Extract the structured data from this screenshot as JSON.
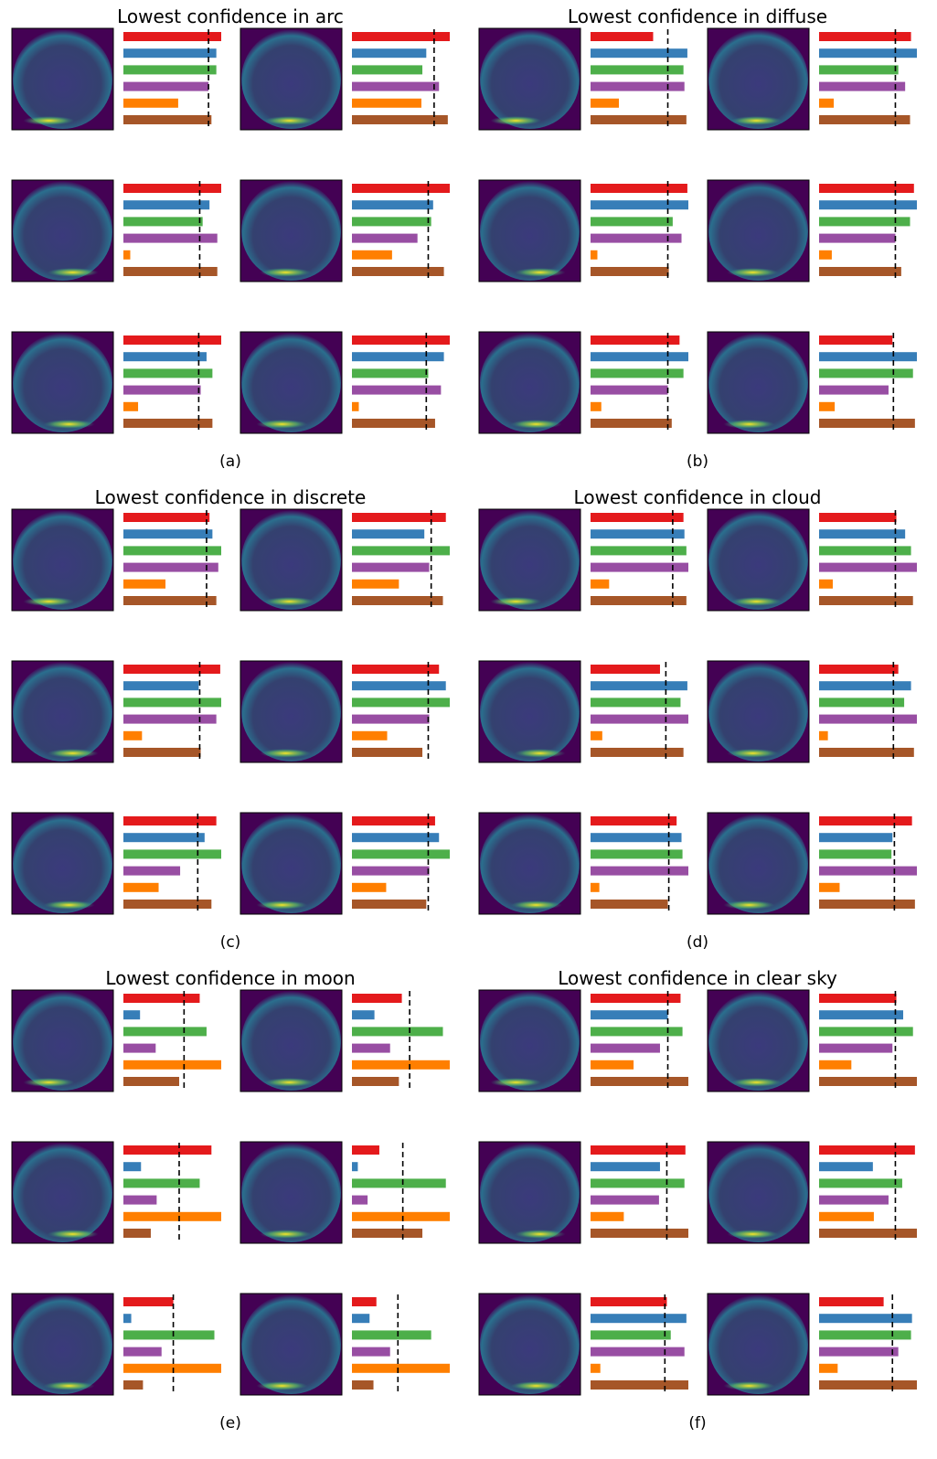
{
  "chart_data": [
    {
      "type": "barh",
      "title": "Lowest confidence in arc",
      "caption": "(a)",
      "xlim": [
        0,
        1
      ],
      "colors": [
        "#e41a1c",
        "#377eb8",
        "#4daf4a",
        "#984ea3",
        "#ff7f00",
        "#a65628"
      ],
      "samples": [
        {
          "values": [
            1.0,
            0.95,
            0.95,
            0.87,
            0.56,
            0.9
          ],
          "threshold": 0.87
        },
        {
          "values": [
            1.0,
            0.76,
            0.72,
            0.89,
            0.71,
            0.98
          ],
          "threshold": 0.84
        },
        {
          "values": [
            1.0,
            0.88,
            0.81,
            0.96,
            0.07,
            0.96
          ],
          "threshold": 0.78
        },
        {
          "values": [
            1.0,
            0.83,
            0.81,
            0.67,
            0.41,
            0.94
          ],
          "threshold": 0.78
        },
        {
          "values": [
            1.0,
            0.85,
            0.91,
            0.79,
            0.15,
            0.91
          ],
          "threshold": 0.77
        },
        {
          "values": [
            1.0,
            0.94,
            0.78,
            0.91,
            0.07,
            0.85
          ],
          "threshold": 0.76
        }
      ]
    },
    {
      "type": "barh",
      "title": "Lowest confidence in diffuse",
      "caption": "(b)",
      "xlim": [
        0,
        1
      ],
      "colors": [
        "#e41a1c",
        "#377eb8",
        "#4daf4a",
        "#984ea3",
        "#ff7f00",
        "#a65628"
      ],
      "samples": [
        {
          "values": [
            0.64,
            0.99,
            0.95,
            0.96,
            0.29,
            0.98
          ],
          "threshold": 0.79
        },
        {
          "values": [
            0.94,
            1.0,
            0.81,
            0.88,
            0.15,
            0.93
          ],
          "threshold": 0.78
        },
        {
          "values": [
            0.99,
            1.0,
            0.84,
            0.93,
            0.07,
            0.8
          ],
          "threshold": 0.79
        },
        {
          "values": [
            0.97,
            1.0,
            0.93,
            0.78,
            0.13,
            0.84
          ],
          "threshold": 0.78
        },
        {
          "values": [
            0.91,
            1.0,
            0.95,
            0.79,
            0.11,
            0.83
          ],
          "threshold": 0.79
        },
        {
          "values": [
            0.75,
            1.0,
            0.96,
            0.71,
            0.16,
            0.98
          ],
          "threshold": 0.76
        }
      ]
    },
    {
      "type": "barh",
      "title": "Lowest confidence in discrete",
      "caption": "(c)",
      "xlim": [
        0,
        1
      ],
      "colors": [
        "#e41a1c",
        "#377eb8",
        "#4daf4a",
        "#984ea3",
        "#ff7f00",
        "#a65628"
      ],
      "samples": [
        {
          "values": [
            0.88,
            0.91,
            1.0,
            0.97,
            0.43,
            0.95
          ],
          "threshold": 0.85
        },
        {
          "values": [
            0.96,
            0.74,
            1.0,
            0.79,
            0.48,
            0.93
          ],
          "threshold": 0.81
        },
        {
          "values": [
            0.99,
            0.77,
            1.0,
            0.95,
            0.19,
            0.79
          ],
          "threshold": 0.78
        },
        {
          "values": [
            0.89,
            0.96,
            1.0,
            0.79,
            0.36,
            0.72
          ],
          "threshold": 0.78
        },
        {
          "values": [
            0.95,
            0.83,
            1.0,
            0.58,
            0.36,
            0.9
          ],
          "threshold": 0.76
        },
        {
          "values": [
            0.85,
            0.89,
            1.0,
            0.79,
            0.35,
            0.76
          ],
          "threshold": 0.78
        }
      ]
    },
    {
      "type": "barh",
      "title": "Lowest confidence in cloud",
      "caption": "(d)",
      "xlim": [
        0,
        1
      ],
      "colors": [
        "#e41a1c",
        "#377eb8",
        "#4daf4a",
        "#984ea3",
        "#ff7f00",
        "#a65628"
      ],
      "samples": [
        {
          "values": [
            0.95,
            0.96,
            0.98,
            1.0,
            0.19,
            0.98
          ],
          "threshold": 0.84
        },
        {
          "values": [
            0.79,
            0.88,
            0.94,
            1.0,
            0.14,
            0.96
          ],
          "threshold": 0.78
        },
        {
          "values": [
            0.71,
            0.99,
            0.92,
            1.0,
            0.12,
            0.95
          ],
          "threshold": 0.77
        },
        {
          "values": [
            0.81,
            0.94,
            0.87,
            1.0,
            0.09,
            0.97
          ],
          "threshold": 0.76
        },
        {
          "values": [
            0.88,
            0.93,
            0.94,
            1.0,
            0.09,
            0.79
          ],
          "threshold": 0.8
        },
        {
          "values": [
            0.95,
            0.75,
            0.74,
            1.0,
            0.21,
            0.98
          ],
          "threshold": 0.77
        }
      ]
    },
    {
      "type": "barh",
      "title": "Lowest confidence in moon",
      "caption": "(e)",
      "xlim": [
        0,
        1
      ],
      "colors": [
        "#e41a1c",
        "#377eb8",
        "#4daf4a",
        "#984ea3",
        "#ff7f00",
        "#a65628"
      ],
      "samples": [
        {
          "values": [
            0.78,
            0.17,
            0.85,
            0.33,
            1.0,
            0.57
          ],
          "threshold": 0.62
        },
        {
          "values": [
            0.51,
            0.23,
            0.93,
            0.39,
            1.0,
            0.48
          ],
          "threshold": 0.59
        },
        {
          "values": [
            0.9,
            0.18,
            0.78,
            0.34,
            1.0,
            0.28
          ],
          "threshold": 0.57
        },
        {
          "values": [
            0.28,
            0.06,
            0.96,
            0.16,
            1.0,
            0.72
          ],
          "threshold": 0.52
        },
        {
          "values": [
            0.51,
            0.08,
            0.93,
            0.39,
            1.0,
            0.2
          ],
          "threshold": 0.51
        },
        {
          "values": [
            0.25,
            0.18,
            0.81,
            0.39,
            1.0,
            0.22
          ],
          "threshold": 0.47
        }
      ]
    },
    {
      "type": "barh",
      "title": "Lowest confidence in clear sky",
      "caption": "(f)",
      "xlim": [
        0,
        1
      ],
      "colors": [
        "#e41a1c",
        "#377eb8",
        "#4daf4a",
        "#984ea3",
        "#ff7f00",
        "#a65628"
      ],
      "samples": [
        {
          "values": [
            0.92,
            0.79,
            0.94,
            0.71,
            0.44,
            1.0
          ],
          "threshold": 0.79
        },
        {
          "values": [
            0.79,
            0.86,
            0.96,
            0.75,
            0.33,
            1.0
          ],
          "threshold": 0.78
        },
        {
          "values": [
            0.97,
            0.71,
            0.96,
            0.7,
            0.34,
            1.0
          ],
          "threshold": 0.78
        },
        {
          "values": [
            0.98,
            0.55,
            0.85,
            0.71,
            0.56,
            1.0
          ],
          "threshold": 0.78
        },
        {
          "values": [
            0.78,
            0.98,
            0.82,
            0.96,
            0.1,
            1.0
          ],
          "threshold": 0.76
        },
        {
          "values": [
            0.66,
            0.95,
            0.94,
            0.81,
            0.19,
            1.0
          ],
          "threshold": 0.75
        }
      ]
    }
  ]
}
